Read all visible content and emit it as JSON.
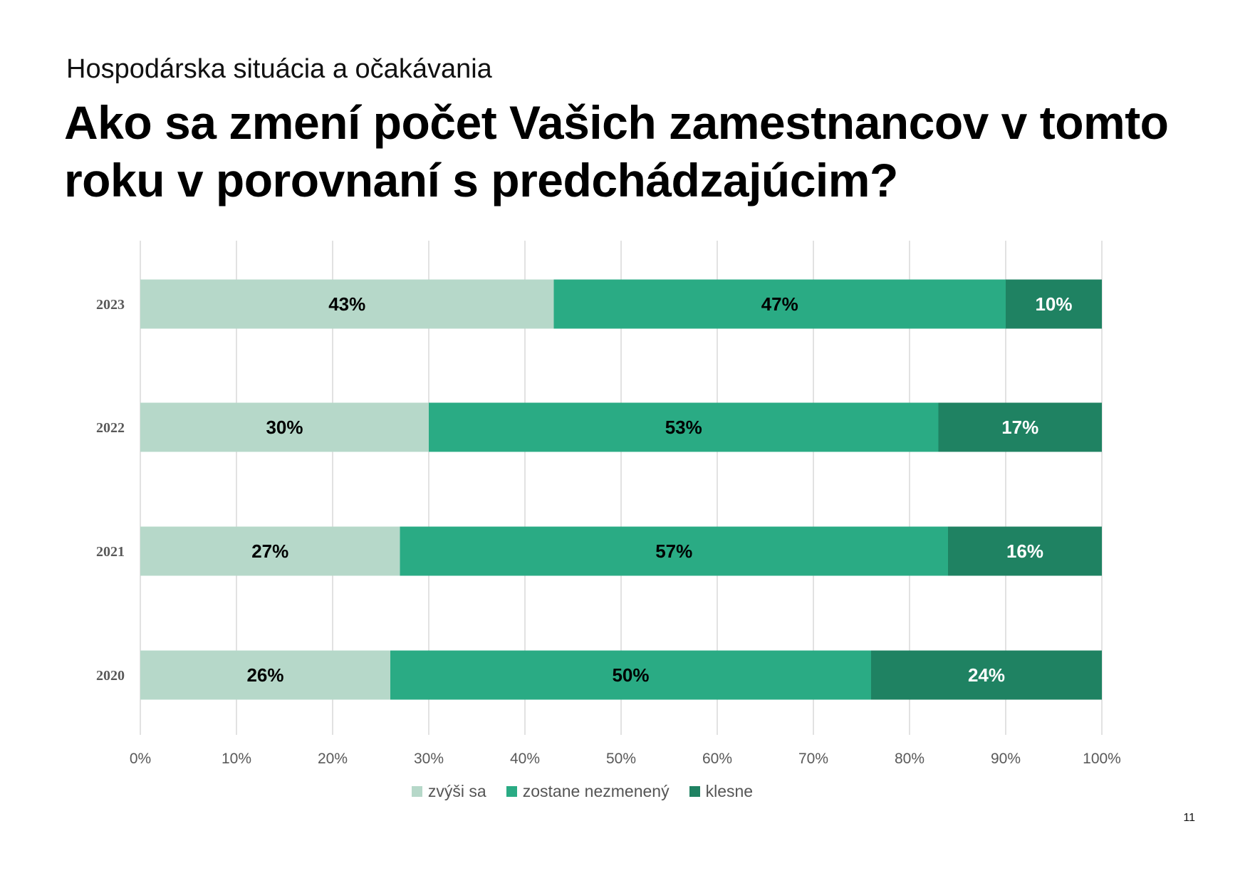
{
  "header": {
    "subtitle": "Hospodárska situácia a očakávania",
    "title": "Ako sa zmení počet Vašich zamestnancov v tomto roku v porovnaní s predchádzajúcim?"
  },
  "page_number": "11",
  "colors": {
    "increase": "#b6d8c9",
    "same": "#2aab84",
    "decrease": "#1f8262",
    "grid": "#d9d9d9"
  },
  "chart_data": {
    "type": "bar",
    "orientation": "horizontal",
    "stacked": "percent",
    "categories": [
      "2023",
      "2022",
      "2021",
      "2020"
    ],
    "series": [
      {
        "name": "zvýši sa",
        "values": [
          43,
          30,
          27,
          26
        ],
        "labels": [
          "43%",
          "30%",
          "27%",
          "26%"
        ],
        "color": "#b6d8c9",
        "label_color": "#000000"
      },
      {
        "name": "zostane nezmenený",
        "values": [
          47,
          53,
          57,
          50
        ],
        "labels": [
          "47%",
          "53%",
          "57%",
          "50%"
        ],
        "color": "#2aab84",
        "label_color": "#000000"
      },
      {
        "name": "klesne",
        "values": [
          10,
          17,
          16,
          24
        ],
        "labels": [
          "10%",
          "17%",
          "16%",
          "24%"
        ],
        "color": "#1f8262",
        "label_color": "#ffffff"
      }
    ],
    "xlim": [
      0,
      100
    ],
    "x_ticks": [
      "0%",
      "10%",
      "20%",
      "30%",
      "40%",
      "50%",
      "60%",
      "70%",
      "80%",
      "90%",
      "100%"
    ],
    "grid": true,
    "legend_position": "bottom"
  }
}
